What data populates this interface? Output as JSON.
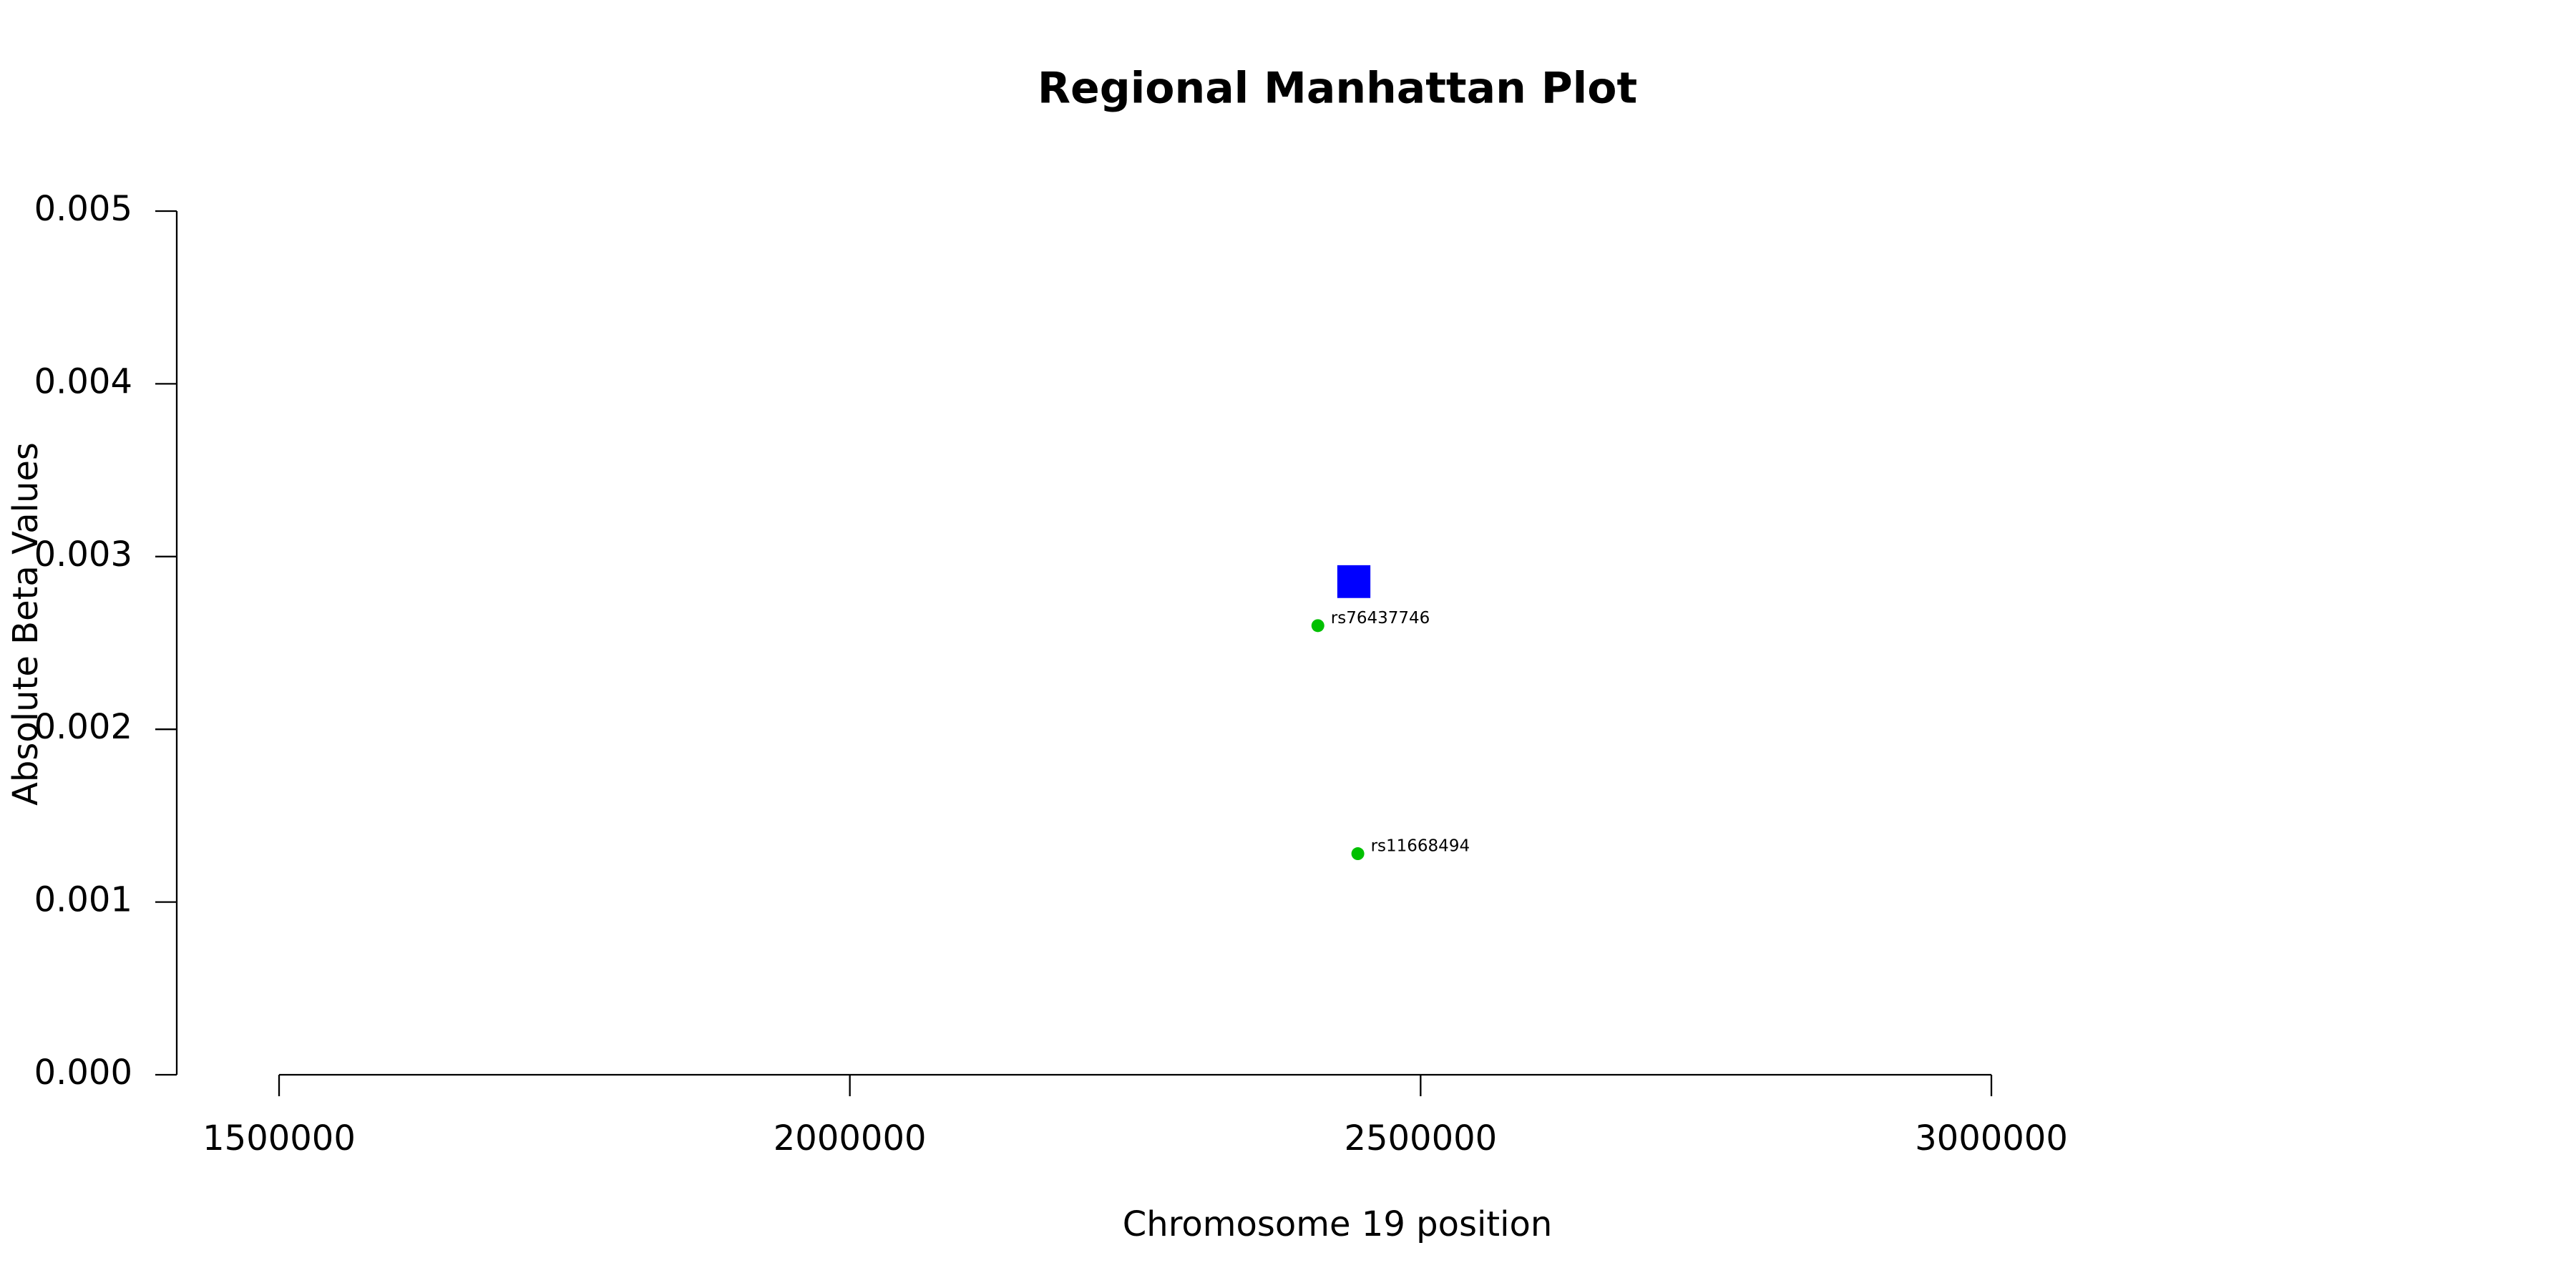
{
  "chart_data": {
    "type": "scatter",
    "title": "Regional Manhattan Plot",
    "x_label": "Chromosome 19 position",
    "y_label": "Absolute Beta Values",
    "x": [
      2410000,
      2445000
    ],
    "values": [
      0.0026,
      0.00128
    ],
    "point_labels": [
      "rs76437746",
      "rs11668494"
    ],
    "color": "#00c000",
    "region": {
      "start": 2427000,
      "end": 2456000,
      "ymin": 0.00276,
      "ymax": 0.00295,
      "color": "#0000ff"
    },
    "xlim": [
      1500000,
      3000000
    ],
    "xticks": [
      1500000,
      2000000,
      2500000,
      3000000
    ],
    "ylim": [
      0,
      0.005
    ],
    "yticks": [
      {
        "value": 0,
        "label": "0.000"
      },
      0.001,
      0.002,
      0.003,
      0.004,
      0.005
    ]
  }
}
